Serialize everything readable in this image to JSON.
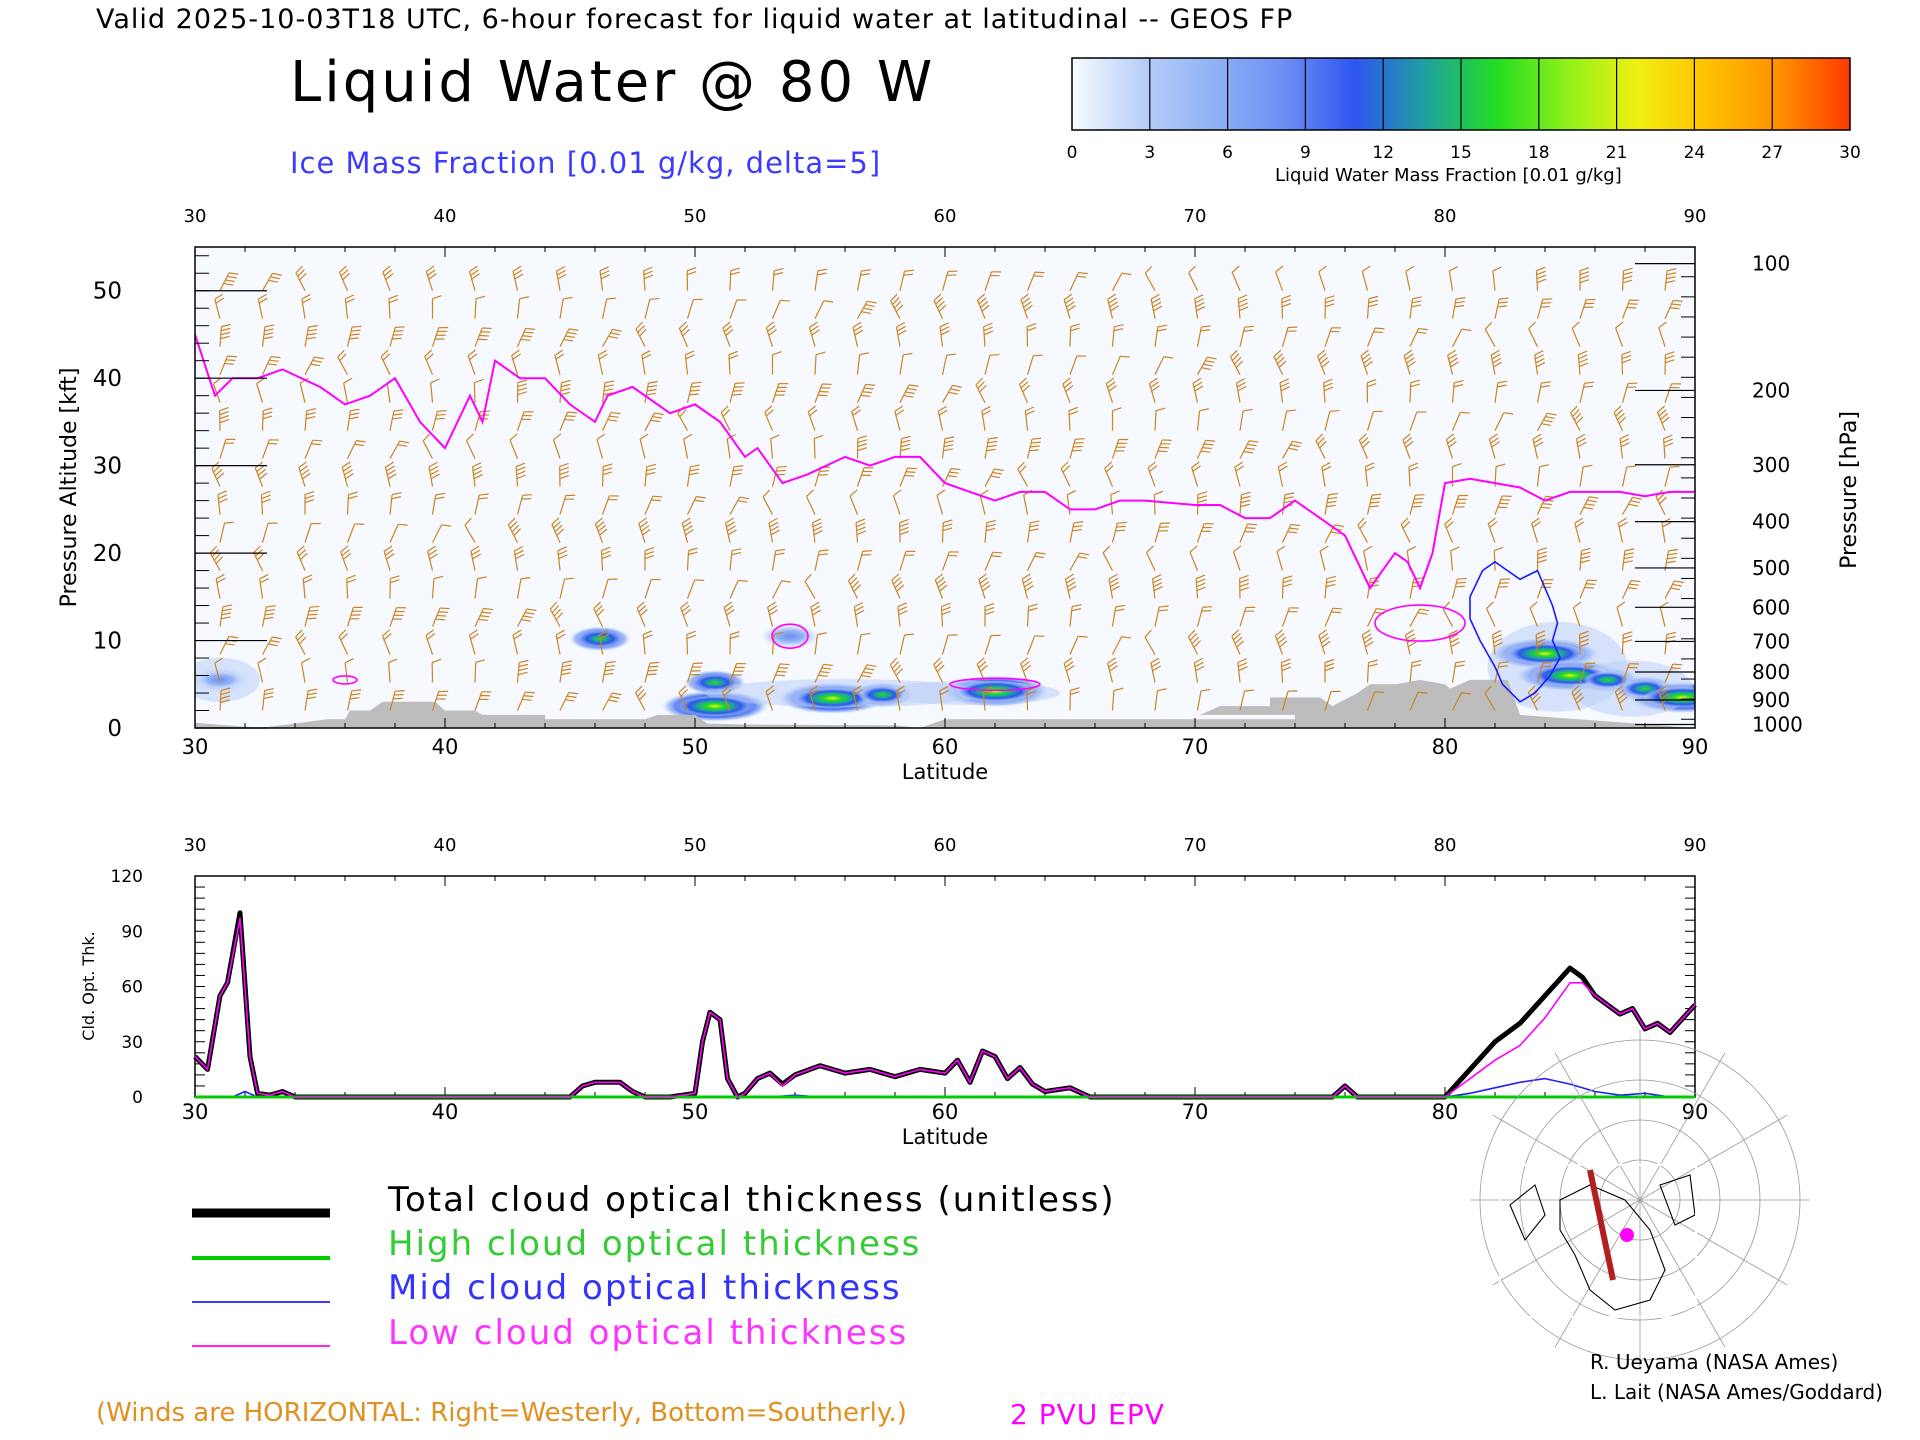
{
  "header": {
    "valid_line": "Valid 2025-10-03T18 UTC, 6-hour forecast for liquid water at latitudinal -- GEOS FP",
    "title": "Liquid Water @ 80 W",
    "subtitle": "Ice Mass Fraction [0.01 g/kg, delta=5]"
  },
  "colorbar": {
    "label": "Liquid Water Mass Fraction [0.01 g/kg]",
    "ticks": [
      "0",
      "3",
      "6",
      "9",
      "12",
      "15",
      "18",
      "21",
      "24",
      "27",
      "30"
    ],
    "colors": [
      "#f8fbff",
      "#b9cff8",
      "#8fb1f5",
      "#6e8ef4",
      "#2e55f0",
      "#1fa1a0",
      "#22dd22",
      "#8ff01a",
      "#f0f010",
      "#ffc000",
      "#ff9000",
      "#ff3a00"
    ]
  },
  "chart_data": [
    {
      "type": "heatmap",
      "title": "Liquid Water @ 80 W",
      "xlabel": "Latitude",
      "ylabel": "Pressure Altitude [kft]",
      "y2label": "Pressure [hPa]",
      "xlim": [
        30,
        90
      ],
      "ylim": [
        0,
        55
      ],
      "x_ticks": [
        "30",
        "40",
        "50",
        "60",
        "70",
        "80",
        "90"
      ],
      "y_ticks": [
        "0",
        "10",
        "20",
        "30",
        "40",
        "50"
      ],
      "pressure_ticks": [
        "100",
        "200",
        "300",
        "400",
        "500",
        "600",
        "700",
        "800",
        "900",
        "1000"
      ],
      "pressure_tick_kft": [
        53.1,
        38.6,
        30.1,
        23.6,
        18.3,
        13.8,
        9.9,
        6.4,
        3.2,
        0.4
      ],
      "liquid_water_blobs": [
        {
          "lat": 55.5,
          "alt_kft": 3.4,
          "peak": 16
        },
        {
          "lat": 57.5,
          "alt_kft": 3.8,
          "peak": 11
        },
        {
          "lat": 62.0,
          "alt_kft": 4.2,
          "peak": 16
        },
        {
          "lat": 50.8,
          "alt_kft": 2.5,
          "peak": 15
        },
        {
          "lat": 50.8,
          "alt_kft": 5.2,
          "peak": 9
        },
        {
          "lat": 46.2,
          "alt_kft": 10.2,
          "peak": 10
        },
        {
          "lat": 53.8,
          "alt_kft": 10.5,
          "peak": 4
        },
        {
          "lat": 31.0,
          "alt_kft": 5.5,
          "peak": 4
        },
        {
          "lat": 84.0,
          "alt_kft": 8.5,
          "peak": 16
        },
        {
          "lat": 85.0,
          "alt_kft": 6.0,
          "peak": 14
        },
        {
          "lat": 86.5,
          "alt_kft": 5.5,
          "peak": 13
        },
        {
          "lat": 88.0,
          "alt_kft": 4.5,
          "peak": 10
        },
        {
          "lat": 89.5,
          "alt_kft": 3.5,
          "peak": 18
        }
      ],
      "epv_2pvu_line": {
        "lat": [
          30,
          30.8,
          31.5,
          32.5,
          33.5,
          35,
          36,
          37,
          38,
          39,
          40,
          41,
          41.5,
          42,
          43,
          44,
          45,
          46,
          46.5,
          47.5,
          49,
          50,
          51,
          52,
          52.5,
          53,
          53.5,
          54.5,
          56,
          57,
          58,
          59,
          60,
          61,
          62,
          63,
          64,
          65,
          66,
          67,
          68,
          70,
          71,
          72,
          73,
          74,
          75,
          76,
          77,
          78,
          78.5,
          79,
          79.5,
          80,
          81,
          82,
          83,
          84,
          85,
          86,
          87,
          88,
          89,
          90
        ],
        "alt": [
          45,
          38,
          40,
          40,
          41,
          39,
          37,
          38,
          40,
          35,
          32,
          38,
          35,
          42,
          40,
          40,
          37,
          35,
          38,
          39,
          36,
          37,
          35,
          31,
          32,
          30,
          28,
          29,
          31,
          30,
          31,
          31,
          28,
          27,
          26,
          27,
          27,
          25,
          25,
          26,
          26,
          25.5,
          25.5,
          24,
          24,
          26,
          24,
          22,
          16,
          20,
          19,
          16,
          20,
          28,
          28.5,
          28,
          27.5,
          26,
          27,
          27,
          27,
          26.5,
          27,
          27
        ]
      },
      "mid_cloud_contour": {
        "lat": [
          81,
          81.5,
          82,
          82.5,
          83,
          83.7,
          84,
          84.3,
          84.5,
          84.3,
          84.6,
          84.2,
          83.6,
          83,
          82.3,
          82,
          81.4,
          81,
          81
        ],
        "alt": [
          15,
          18,
          19,
          18,
          17,
          18,
          16,
          14,
          12,
          10,
          8,
          6,
          4,
          3,
          5,
          7,
          10,
          12.5,
          15
        ]
      },
      "terrain_kft": [
        [
          30,
          0.6
        ],
        [
          32.6,
          0
        ],
        [
          35.3,
          1
        ],
        [
          36,
          1
        ],
        [
          36.2,
          2
        ],
        [
          37,
          2
        ],
        [
          37.5,
          3
        ],
        [
          39.6,
          3
        ],
        [
          40,
          2
        ],
        [
          41.2,
          2
        ],
        [
          41.5,
          1.5
        ],
        [
          44,
          1.5
        ],
        [
          44,
          1
        ],
        [
          48,
          1
        ],
        [
          48.5,
          1.5
        ],
        [
          50,
          1.5
        ],
        [
          50.5,
          0.5
        ],
        [
          52,
          0.4
        ],
        [
          58,
          0.3
        ],
        [
          59,
          0
        ],
        [
          60,
          1
        ],
        [
          74,
          1
        ],
        [
          74,
          1.5
        ],
        [
          70.2,
          1.5
        ],
        [
          71,
          2.5
        ],
        [
          73,
          2.5
        ],
        [
          73,
          3.5
        ],
        [
          75,
          3.5
        ],
        [
          75.5,
          2.5
        ],
        [
          76.5,
          4
        ],
        [
          77,
          5
        ],
        [
          78,
          5
        ],
        [
          79,
          5.5
        ],
        [
          80,
          5
        ],
        [
          80.2,
          4.5
        ],
        [
          81,
          5.5
        ],
        [
          82.5,
          5.5
        ],
        [
          83,
          1.5
        ],
        [
          90,
          0
        ]
      ],
      "legend": [
        "2 PVU EPV"
      ]
    },
    {
      "type": "line",
      "xlabel": "Latitude",
      "ylabel": "Cld. Opt. Thk.",
      "xlim": [
        30,
        90
      ],
      "ylim": [
        0,
        120
      ],
      "x_ticks": [
        "30",
        "40",
        "50",
        "60",
        "70",
        "80",
        "90"
      ],
      "y_ticks": [
        "0",
        "30",
        "60",
        "90",
        "120"
      ],
      "series": [
        {
          "name": "Total cloud optical thickness (unitless)",
          "color": "#000000",
          "x": [
            30,
            30.5,
            31,
            31.3,
            31.8,
            32.2,
            32.5,
            33,
            33.5,
            34,
            35,
            40,
            45,
            45.5,
            46,
            47,
            47.5,
            48,
            49,
            50,
            50.3,
            50.6,
            51,
            51.3,
            51.7,
            52,
            52.5,
            53,
            53.5,
            54,
            55,
            56,
            57,
            58,
            59,
            60,
            60.5,
            61,
            61.5,
            62,
            62.5,
            63,
            63.5,
            64,
            65,
            65.8,
            66,
            70,
            75.5,
            76,
            76.5,
            77,
            80,
            81,
            82,
            83,
            84,
            85,
            85.5,
            86,
            87,
            87.5,
            88,
            88.5,
            89,
            90
          ],
          "y": [
            22,
            15,
            55,
            62,
            100,
            22,
            2,
            1,
            3,
            0,
            0,
            0,
            0,
            6,
            8,
            8,
            3,
            0,
            0,
            2,
            30,
            46,
            42,
            10,
            0,
            2,
            10,
            13,
            7,
            12,
            17,
            13,
            15,
            11,
            15,
            13,
            20,
            8,
            25,
            22,
            10,
            16,
            7,
            3,
            5,
            0,
            0,
            0,
            0,
            6,
            0,
            0,
            0,
            15,
            30,
            40,
            55,
            70,
            65,
            55,
            45,
            48,
            37,
            40,
            35,
            50
          ]
        },
        {
          "name": "High cloud optical thickness",
          "color": "#00cc00",
          "x": [
            30,
            90
          ],
          "y": [
            0,
            0
          ]
        },
        {
          "name": "Mid cloud optical thickness",
          "color": "#2020ff",
          "x": [
            30,
            31.5,
            32,
            32.5,
            53,
            54,
            55,
            80,
            81,
            82,
            83,
            84,
            85,
            86,
            87,
            88,
            89,
            90
          ],
          "y": [
            0,
            0,
            3,
            0,
            0,
            1,
            0,
            0,
            2,
            5,
            8,
            10,
            7,
            3,
            1,
            2,
            0,
            0
          ]
        },
        {
          "name": "Low cloud optical thickness",
          "color": "#ff00ff",
          "x": [
            30,
            30.5,
            31,
            31.3,
            31.8,
            32.2,
            32.5,
            33,
            33.5,
            34,
            35,
            40,
            45,
            45.5,
            46,
            47,
            47.5,
            48,
            49,
            50,
            50.3,
            50.6,
            51,
            51.3,
            51.7,
            52,
            52.5,
            53,
            53.5,
            54,
            55,
            56,
            57,
            58,
            59,
            60,
            60.5,
            61,
            61.5,
            62,
            62.5,
            63,
            63.5,
            64,
            65,
            65.8,
            66,
            70,
            75.5,
            76,
            76.5,
            77,
            80,
            81,
            82,
            83,
            84,
            85,
            85.5,
            86,
            87,
            87.5,
            88,
            88.5,
            89,
            90
          ],
          "y": [
            22,
            15,
            55,
            62,
            97,
            22,
            2,
            1,
            3,
            0,
            0,
            0,
            0,
            6,
            8,
            8,
            3,
            0,
            0,
            2,
            30,
            46,
            42,
            10,
            0,
            2,
            10,
            13,
            6,
            12,
            17,
            13,
            15,
            11,
            15,
            13,
            20,
            8,
            25,
            22,
            10,
            16,
            7,
            3,
            5,
            0,
            0,
            0,
            0,
            6,
            0,
            0,
            0,
            10,
            20,
            28,
            43,
            62,
            62,
            55,
            45,
            48,
            37,
            40,
            35,
            50
          ]
        }
      ]
    }
  ],
  "legend": {
    "total": "Total cloud optical thickness (unitless)",
    "high": "High cloud optical thickness",
    "mid": "Mid cloud optical thickness",
    "low": "Low cloud optical thickness",
    "total_color": "#000000",
    "high_color": "#00cc00",
    "mid_color": "#2020ff",
    "low_color": "#ff00ff"
  },
  "notes": {
    "winds": "(Winds are HORIZONTAL: Right=Westerly, Bottom=Southerly.)",
    "epv": "2 PVU EPV"
  },
  "credits": {
    "line1": "R. Ueyama (NASA Ames)",
    "line2": "L. Lait (NASA Ames/Goddard)"
  },
  "locator_map": {
    "icon": "polar-map-icon",
    "transect_color": "#b02020",
    "marker_color": "#ff00ff"
  }
}
